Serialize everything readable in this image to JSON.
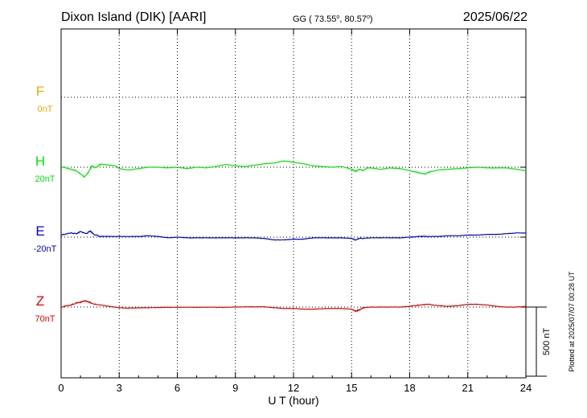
{
  "chart_data": {
    "type": "line",
    "title": "Dixon Island (DIK)  [AARI]",
    "coordinates": "GG ( 73.55°,  80.57°)",
    "coordinates_parts": {
      "prefix": "GG ( 73.55",
      "sep": ",  80.57",
      "end": ")",
      "degree": "o"
    },
    "date": "2025/06/22",
    "plotted_note": "Plotted at 2025/07/07 00:28 UT",
    "xlabel": "U T (hour)",
    "x_ticks": [
      "0",
      "3",
      "6",
      "9",
      "12",
      "15",
      "18",
      "21",
      "24"
    ],
    "xlim": [
      0,
      24
    ],
    "grid": true,
    "scale_bar": {
      "label": "500 nT",
      "value_nT": 500
    },
    "series": [
      {
        "name": "F",
        "baseline_label": "0nT",
        "color": "#f5a800",
        "points": []
      },
      {
        "name": "H",
        "baseline_label": "20nT",
        "color": "#00e600",
        "points": [
          [
            0,
            5
          ],
          [
            0.5,
            -15
          ],
          [
            0.8,
            -25
          ],
          [
            1.0,
            -50
          ],
          [
            1.2,
            -70
          ],
          [
            1.4,
            -40
          ],
          [
            1.6,
            10
          ],
          [
            1.8,
            -5
          ],
          [
            2.0,
            20
          ],
          [
            2.2,
            20
          ],
          [
            2.5,
            15
          ],
          [
            2.8,
            10
          ],
          [
            3.0,
            -10
          ],
          [
            3.5,
            -20
          ],
          [
            4.0,
            -10
          ],
          [
            4.5,
            0
          ],
          [
            5.0,
            0
          ],
          [
            5.5,
            -5
          ],
          [
            6.0,
            0
          ],
          [
            6.5,
            -10
          ],
          [
            7.0,
            0
          ],
          [
            7.5,
            -5
          ],
          [
            8.0,
            5
          ],
          [
            8.5,
            20
          ],
          [
            9.0,
            10
          ],
          [
            9.5,
            5
          ],
          [
            10.0,
            15
          ],
          [
            10.5,
            25
          ],
          [
            11.0,
            30
          ],
          [
            11.3,
            40
          ],
          [
            11.5,
            45
          ],
          [
            11.8,
            40
          ],
          [
            12.0,
            35
          ],
          [
            12.5,
            25
          ],
          [
            13.0,
            10
          ],
          [
            13.5,
            5
          ],
          [
            14.0,
            0
          ],
          [
            14.5,
            5
          ],
          [
            15.0,
            -15
          ],
          [
            15.2,
            -30
          ],
          [
            15.4,
            -15
          ],
          [
            15.6,
            -25
          ],
          [
            15.8,
            -5
          ],
          [
            16.0,
            -5
          ],
          [
            16.5,
            -15
          ],
          [
            17.0,
            -5
          ],
          [
            17.5,
            -10
          ],
          [
            18.0,
            -25
          ],
          [
            18.5,
            -40
          ],
          [
            18.8,
            -50
          ],
          [
            19.0,
            -35
          ],
          [
            19.5,
            -20
          ],
          [
            20.0,
            -15
          ],
          [
            20.5,
            -10
          ],
          [
            21.0,
            -5
          ],
          [
            21.5,
            0
          ],
          [
            22.0,
            -5
          ],
          [
            22.5,
            -5
          ],
          [
            23.0,
            -5
          ],
          [
            23.5,
            -15
          ],
          [
            24.0,
            -25
          ]
        ]
      },
      {
        "name": "E",
        "baseline_label": "-20nT",
        "color": "#0000dd",
        "points": [
          [
            0,
            15
          ],
          [
            0.5,
            30
          ],
          [
            0.8,
            25
          ],
          [
            1.0,
            40
          ],
          [
            1.3,
            25
          ],
          [
            1.5,
            45
          ],
          [
            1.7,
            20
          ],
          [
            2.0,
            5
          ],
          [
            2.5,
            5
          ],
          [
            3.0,
            5
          ],
          [
            3.5,
            5
          ],
          [
            4.0,
            5
          ],
          [
            4.5,
            10
          ],
          [
            5.0,
            5
          ],
          [
            5.5,
            -5
          ],
          [
            6.0,
            0
          ],
          [
            6.5,
            -5
          ],
          [
            7.0,
            -5
          ],
          [
            7.5,
            -5
          ],
          [
            8.0,
            -5
          ],
          [
            8.5,
            -5
          ],
          [
            9.0,
            -5
          ],
          [
            9.5,
            -5
          ],
          [
            10.0,
            -5
          ],
          [
            10.5,
            -10
          ],
          [
            11.0,
            -20
          ],
          [
            11.5,
            -20
          ],
          [
            12.0,
            -15
          ],
          [
            12.5,
            -15
          ],
          [
            13.0,
            -5
          ],
          [
            13.5,
            -5
          ],
          [
            14.0,
            -5
          ],
          [
            14.5,
            -5
          ],
          [
            15.0,
            -10
          ],
          [
            15.2,
            -20
          ],
          [
            15.4,
            -10
          ],
          [
            16.0,
            -5
          ],
          [
            16.5,
            -5
          ],
          [
            17.0,
            -5
          ],
          [
            17.5,
            -5
          ],
          [
            18.0,
            0
          ],
          [
            18.5,
            5
          ],
          [
            19.0,
            5
          ],
          [
            19.5,
            5
          ],
          [
            20.0,
            10
          ],
          [
            20.5,
            10
          ],
          [
            21.0,
            15
          ],
          [
            21.5,
            15
          ],
          [
            22.0,
            20
          ],
          [
            22.5,
            20
          ],
          [
            23.0,
            25
          ],
          [
            23.5,
            30
          ],
          [
            24.0,
            30
          ]
        ]
      },
      {
        "name": "Z",
        "baseline_label": "70nT",
        "color": "#e00000",
        "points": [
          [
            0,
            0
          ],
          [
            0.5,
            15
          ],
          [
            0.8,
            30
          ],
          [
            1.0,
            35
          ],
          [
            1.2,
            45
          ],
          [
            1.4,
            40
          ],
          [
            1.6,
            25
          ],
          [
            2.0,
            15
          ],
          [
            2.5,
            5
          ],
          [
            3.0,
            -5
          ],
          [
            3.5,
            -8
          ],
          [
            4.0,
            -5
          ],
          [
            4.5,
            -5
          ],
          [
            5.0,
            -3
          ],
          [
            5.5,
            -2
          ],
          [
            6.0,
            -2
          ],
          [
            6.5,
            -1
          ],
          [
            7.0,
            -2
          ],
          [
            7.5,
            -1
          ],
          [
            8.0,
            -2
          ],
          [
            8.5,
            -2
          ],
          [
            9.0,
            0
          ],
          [
            9.5,
            2
          ],
          [
            10.0,
            2
          ],
          [
            10.5,
            2
          ],
          [
            11.0,
            -5
          ],
          [
            11.5,
            -10
          ],
          [
            12.0,
            -10
          ],
          [
            12.5,
            -15
          ],
          [
            13.0,
            -15
          ],
          [
            13.5,
            -12
          ],
          [
            14.0,
            -10
          ],
          [
            14.5,
            -10
          ],
          [
            15.0,
            -15
          ],
          [
            15.2,
            -30
          ],
          [
            15.4,
            -20
          ],
          [
            15.6,
            -5
          ],
          [
            16.0,
            0
          ],
          [
            16.5,
            0
          ],
          [
            17.0,
            0
          ],
          [
            17.5,
            0
          ],
          [
            18.0,
            5
          ],
          [
            18.5,
            15
          ],
          [
            19.0,
            20
          ],
          [
            19.5,
            10
          ],
          [
            20.0,
            5
          ],
          [
            20.5,
            10
          ],
          [
            21.0,
            20
          ],
          [
            21.5,
            20
          ],
          [
            22.0,
            15
          ],
          [
            22.5,
            5
          ],
          [
            23.0,
            0
          ],
          [
            23.5,
            0
          ],
          [
            24.0,
            5
          ]
        ]
      }
    ]
  }
}
